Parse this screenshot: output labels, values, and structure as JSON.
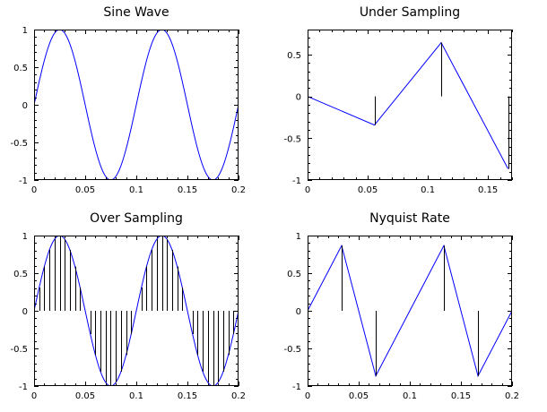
{
  "chart_data": [
    {
      "type": "line",
      "title": "Sine Wave",
      "xlim": [
        0,
        0.2
      ],
      "ylim": [
        -1,
        1
      ],
      "xticks": [
        0,
        0.05,
        0.1,
        0.15,
        0.2
      ],
      "xtick_labels": [
        "0",
        "0.05",
        "0.1",
        "0.15",
        "0.2"
      ],
      "yticks": [
        -1,
        -0.5,
        0,
        0.5,
        1
      ],
      "ytick_labels": [
        "-1",
        "-0.5",
        "0",
        "0.5",
        "1"
      ],
      "grid": false,
      "series": [
        {
          "style": "line",
          "color": "#0000ff",
          "function": "sin(2*pi*10*x)",
          "x_range": [
            0,
            0.2
          ],
          "step": 0.001
        }
      ]
    },
    {
      "type": "line",
      "title": "Under Sampling",
      "xlim": [
        0,
        0.17
      ],
      "ylim": [
        -1,
        0.8
      ],
      "xticks": [
        0,
        0.05,
        0.1,
        0.15
      ],
      "xtick_labels": [
        "0",
        "0.05",
        "0.1",
        "0.15"
      ],
      "yticks": [
        -1,
        -0.5,
        0,
        0.5
      ],
      "ytick_labels": [
        "-1",
        "-0.5",
        "0",
        "0.5"
      ],
      "grid": false,
      "series": [
        {
          "style": "line",
          "color": "#0000ff",
          "x": [
            0,
            0.0556,
            0.1111,
            0.1667
          ],
          "y": [
            0,
            -0.342,
            0.643,
            -0.866
          ]
        },
        {
          "style": "stem",
          "color": "#000000",
          "x": [
            0,
            0.0556,
            0.1111,
            0.1667
          ],
          "y": [
            0,
            -0.342,
            0.643,
            -0.866
          ]
        }
      ]
    },
    {
      "type": "line",
      "title": "Over Sampling",
      "xlim": [
        0,
        0.2
      ],
      "ylim": [
        -1,
        1
      ],
      "xticks": [
        0,
        0.05,
        0.1,
        0.15,
        0.2
      ],
      "xtick_labels": [
        "0",
        "0.05",
        "0.1",
        "0.15",
        "0.2"
      ],
      "yticks": [
        -1,
        -0.5,
        0,
        0.5,
        1
      ],
      "ytick_labels": [
        "-1",
        "-0.5",
        "0",
        "0.5",
        "1"
      ],
      "grid": false,
      "series": [
        {
          "style": "line",
          "color": "#0000ff",
          "function": "sin(2*pi*10*x)",
          "x_range": [
            0,
            0.2
          ],
          "step": 0.001
        },
        {
          "style": "stem",
          "color": "#000000",
          "function": "sin(2*pi*10*x)",
          "x_range": [
            0,
            0.2
          ],
          "step": 0.005
        }
      ]
    },
    {
      "type": "line",
      "title": "Nyquist Rate",
      "xlim": [
        0,
        0.2
      ],
      "ylim": [
        -1,
        1
      ],
      "xticks": [
        0,
        0.05,
        0.1,
        0.15,
        0.2
      ],
      "xtick_labels": [
        "0",
        "0.05",
        "0.1",
        "0.15",
        "0.2"
      ],
      "yticks": [
        -1,
        -0.5,
        0,
        0.5,
        1
      ],
      "ytick_labels": [
        "-1",
        "-0.5",
        "0",
        "0.5",
        "1"
      ],
      "grid": false,
      "series": [
        {
          "style": "line",
          "color": "#0000ff",
          "x": [
            0,
            0.0333,
            0.0667,
            0.1,
            0.1333,
            0.1667,
            0.2
          ],
          "y": [
            0,
            0.866,
            -0.866,
            0,
            0.866,
            -0.866,
            0
          ]
        },
        {
          "style": "stem",
          "color": "#000000",
          "x": [
            0.0333,
            0.0667,
            0.1333,
            0.1667
          ],
          "y": [
            0.866,
            -0.866,
            0.866,
            -0.866
          ]
        }
      ]
    }
  ]
}
